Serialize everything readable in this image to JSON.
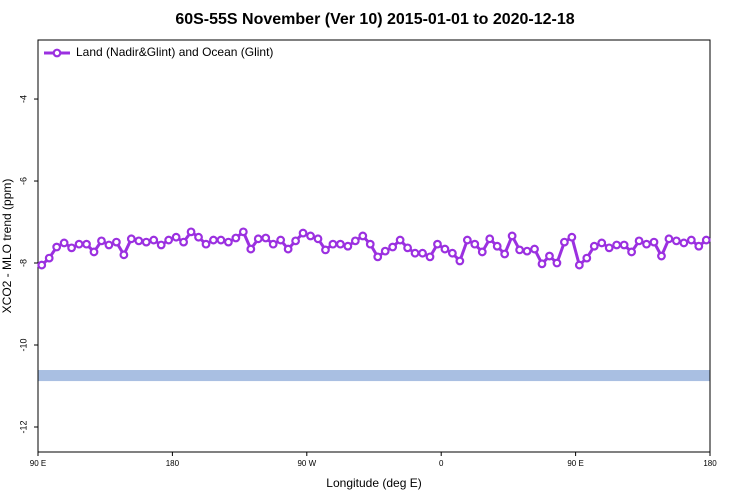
{
  "chart_data": {
    "type": "line",
    "title": "60S-55S November (Ver 10)   2015-01-01 to 2020-12-18",
    "x_label": "Longitude (deg E)",
    "y_label": "XCO2 - MLO trend (ppm)",
    "xlim": [
      90,
      540
    ],
    "xticks": [
      {
        "value": 90,
        "label": "90 E"
      },
      180,
      {
        "value": 270,
        "label": "90 W"
      },
      {
        "value": 360,
        "label": "0"
      },
      {
        "value": 450,
        "label": "90 E"
      },
      {
        "value": 540,
        "label": "180"
      }
    ],
    "ylim": [
      -12.61,
      -2.56
    ],
    "yticks": [
      -12,
      -10,
      -8,
      -6,
      -4
    ],
    "legend": "top-left",
    "x": [
      92.5,
      97.5,
      102.5,
      107.5,
      112.5,
      117.5,
      122.5,
      127.5,
      132.5,
      137.5,
      142.5,
      147.5,
      152.5,
      157.5,
      162.5,
      167.5,
      172.5,
      177.5,
      182.5,
      187.5,
      192.5,
      197.5,
      202.5,
      207.5,
      212.5,
      217.5,
      222.5,
      227.5,
      232.5,
      237.5,
      242.5,
      247.5,
      252.5,
      257.5,
      262.5,
      267.5,
      272.5,
      277.5,
      282.5,
      287.5,
      292.5,
      297.5,
      302.5,
      307.5,
      312.5,
      317.5,
      322.5,
      327.5,
      332.5,
      337.5,
      342.5,
      347.5,
      352.5,
      357.5,
      362.5,
      367.5,
      372.5,
      377.5,
      382.5,
      387.5,
      392.5,
      397.5,
      402.5,
      407.5,
      412.5,
      417.5,
      422.5,
      427.5,
      432.5,
      437.5,
      442.5,
      447.5,
      452.5,
      457.5,
      462.5,
      467.5,
      472.5,
      477.5,
      482.5,
      487.5,
      492.5,
      497.5,
      502.5,
      507.5,
      512.5,
      517.5,
      522.5,
      527.5,
      532.5,
      537.5
    ],
    "series": [
      {
        "name": "Land (Nadir&Glint) and Ocean (Glint)",
        "color": "#9b30e0",
        "values": [
          -8.05,
          -7.88,
          -7.61,
          -7.51,
          -7.63,
          -7.54,
          -7.54,
          -7.73,
          -7.46,
          -7.56,
          -7.49,
          -7.8,
          -7.41,
          -7.46,
          -7.49,
          -7.44,
          -7.56,
          -7.44,
          -7.37,
          -7.49,
          -7.24,
          -7.37,
          -7.54,
          -7.44,
          -7.44,
          -7.49,
          -7.39,
          -7.24,
          -7.66,
          -7.41,
          -7.39,
          -7.54,
          -7.44,
          -7.66,
          -7.46,
          -7.27,
          -7.34,
          -7.41,
          -7.68,
          -7.54,
          -7.54,
          -7.59,
          -7.46,
          -7.34,
          -7.54,
          -7.85,
          -7.71,
          -7.61,
          -7.44,
          -7.63,
          -7.76,
          -7.76,
          -7.85,
          -7.54,
          -7.66,
          -7.76,
          -7.95,
          -7.44,
          -7.54,
          -7.73,
          -7.41,
          -7.59,
          -7.78,
          -7.34,
          -7.68,
          -7.71,
          -7.66,
          -8.02,
          -7.83,
          -8.0,
          -7.49,
          -7.37,
          -8.05,
          -7.88,
          -7.59,
          -7.51,
          -7.63,
          -7.56,
          -7.56,
          -7.73,
          -7.46,
          -7.54,
          -7.49,
          -7.83,
          -7.41,
          -7.46,
          -7.51,
          -7.44,
          -7.59,
          -7.44
        ]
      }
    ],
    "band": {
      "values": [
        -10.61,
        -10.88
      ],
      "color": "#a9bfe2"
    }
  }
}
